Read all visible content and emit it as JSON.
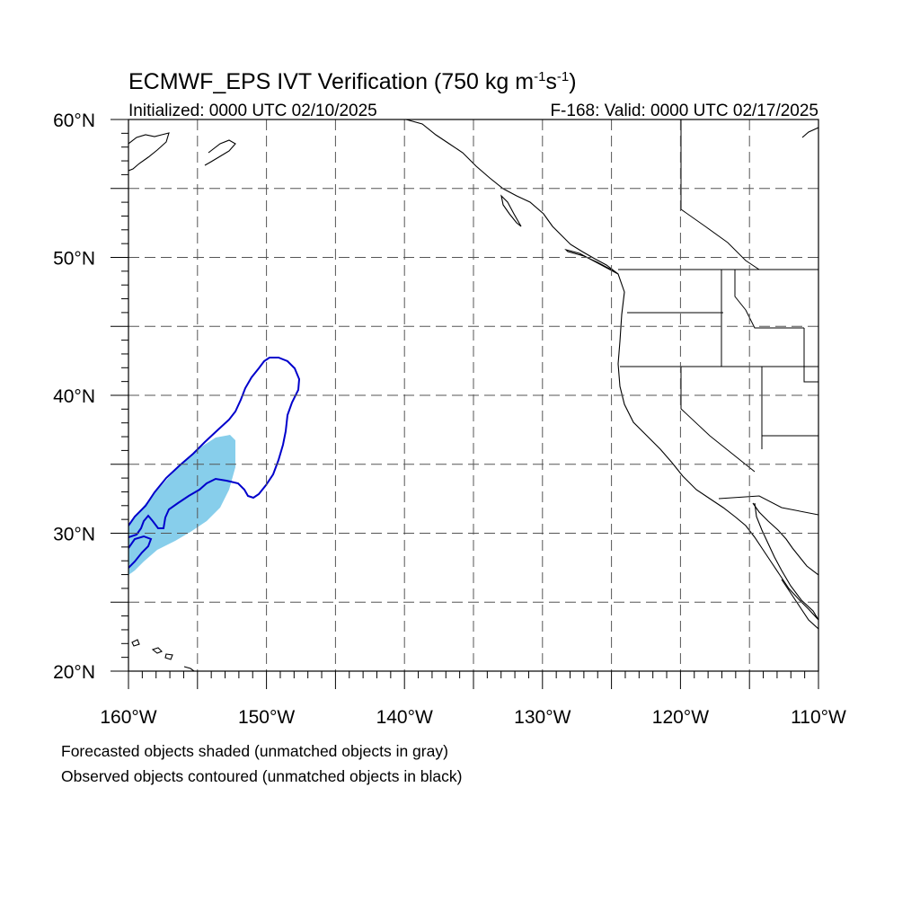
{
  "title": {
    "main": "ECMWF_EPS IVT Verification (750 kg m",
    "exp1": "-1",
    "mid": "s",
    "exp2": "-1",
    "end": ")"
  },
  "subtitle": {
    "left": "Initialized: 0000 UTC 02/10/2025",
    "right": "F-168: Valid: 0000 UTC 02/17/2025"
  },
  "map": {
    "lon_range": [
      -160,
      -110
    ],
    "lat_range": [
      20,
      60
    ],
    "lon_labels": [
      "160°W",
      "150°W",
      "140°W",
      "130°W",
      "120°W",
      "110°W"
    ],
    "lat_labels": [
      "60°N",
      "50°N",
      "40°N",
      "30°N",
      "20°N"
    ],
    "gridline_spacing_deg": 5,
    "colors": {
      "forecast_shade": "#87ceeb",
      "observed_contour": "#0000cc",
      "coastline": "#000000",
      "grid": "#555555"
    }
  },
  "captions": {
    "line1": "Forecasted objects shaded (unmatched objects in gray)",
    "line2": "Observed objects contoured (unmatched objects in black)"
  }
}
